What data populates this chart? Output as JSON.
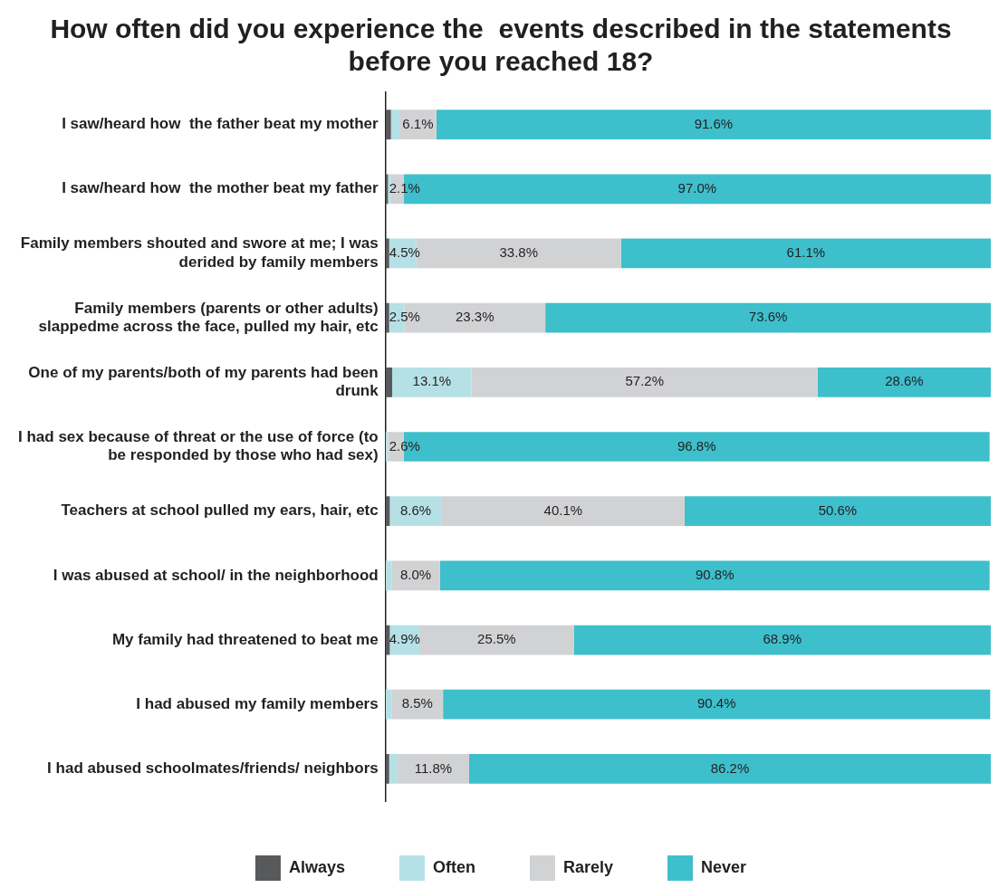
{
  "chart_data": {
    "type": "bar",
    "orientation": "horizontal",
    "stacked": true,
    "title": "How often did you experience the  events described in the statements before you reached 18?",
    "categories": [
      "I saw/heard how  the father beat my mother",
      "I saw/heard how  the mother beat my father",
      "Family members shouted and swore at me; I was derided by family members",
      "Family members (parents or other adults) slappedme across the face, pulled my hair, etc",
      "One of my parents/both of my parents had been drunk",
      "I had sex because of threat or the use of force (to be responded by those who had sex)",
      "Teachers at school pulled my ears, hair, etc",
      "I was abused at school/ in the neighborhood",
      "My family had threatened to beat me",
      "I had abused my family members",
      "I had abused schoolmates/friends/ neighbors"
    ],
    "xlim": [
      0,
      100
    ],
    "tick_labels": "y",
    "grid": false,
    "legend": "bottom",
    "series": [
      {
        "name": "Always",
        "color": "#58595b",
        "values": [
          0.9,
          0.4,
          0.6,
          0.6,
          1.1,
          null,
          0.7,
          null,
          0.7,
          null,
          0.6
        ]
      },
      {
        "name": "Often",
        "color": "#b5e1e6",
        "values": [
          1.4,
          0.5,
          4.5,
          2.5,
          13.1,
          0.4,
          8.6,
          1.0,
          4.9,
          1.0,
          1.4
        ],
        "value_labels": [
          null,
          null,
          "4.5%",
          "2.5%",
          "13.1%",
          null,
          "8.6%",
          null,
          "4.9%",
          null,
          null
        ]
      },
      {
        "name": "Rarely",
        "color": "#d1d2d4",
        "values": [
          6.1,
          2.1,
          33.8,
          23.3,
          57.2,
          2.6,
          40.1,
          8.0,
          25.5,
          8.5,
          11.8
        ],
        "value_labels": [
          "6.1%",
          "2.1%",
          "33.8%",
          "23.3%",
          "57.2%",
          "2.6%",
          "40.1%",
          "8.0%",
          "25.5%",
          "8.5%",
          "11.8%"
        ]
      },
      {
        "name": "Never",
        "color": "#3ebfcc",
        "values": [
          91.6,
          97.0,
          61.1,
          73.6,
          28.6,
          96.8,
          50.6,
          90.8,
          68.9,
          90.4,
          86.2
        ],
        "value_labels": [
          "91.6%",
          "97.0%",
          "61.1%",
          "73.6%",
          "28.6%",
          "96.8%",
          "50.6%",
          "90.8%",
          "68.9%",
          "90.4%",
          "86.2%"
        ]
      }
    ]
  }
}
